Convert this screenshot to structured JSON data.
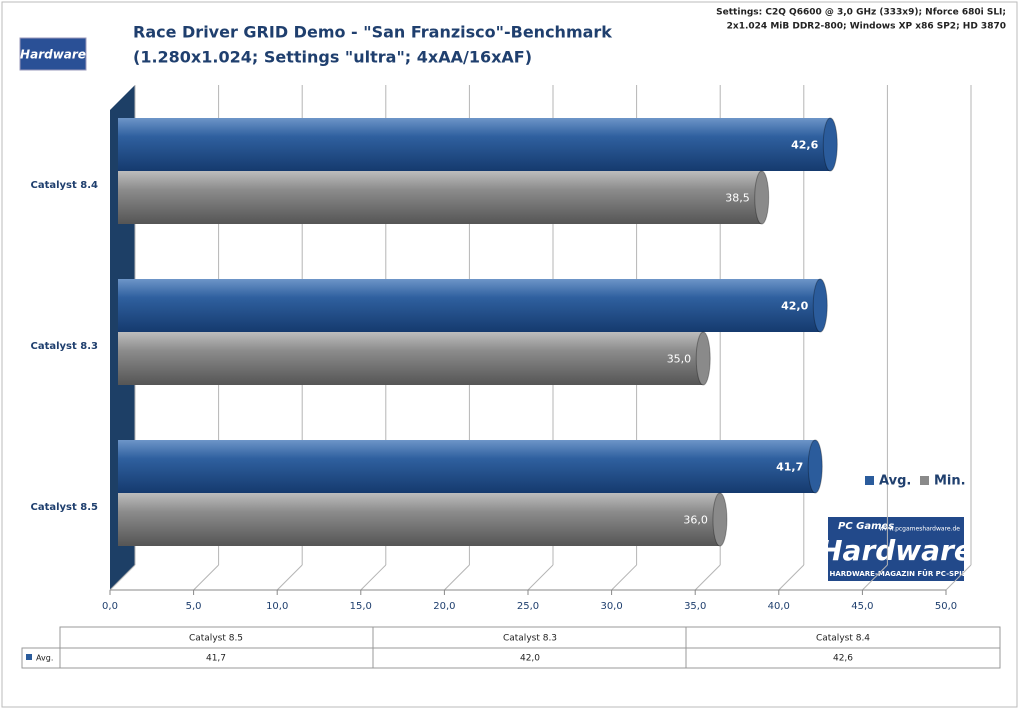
{
  "chart_data": {
    "type": "bar",
    "orientation": "horizontal",
    "title": [
      "Race Driver GRID Demo - \"San Franzisco\"-Benchmark",
      "(1.280x1.024; Settings \"ultra\"; 4xAA/16xAF)"
    ],
    "subtitle": [
      "Settings: C2Q Q6600 @ 3,0 GHz (333x9); Nforce 680i SLI;",
      "2x1.024 MiB DDR2-800; Windows XP x86 SP2; HD 3870"
    ],
    "categories": [
      "Catalyst 8.4",
      "Catalyst 8.3",
      "Catalyst 8.5"
    ],
    "series": [
      {
        "name": "Avg.",
        "color": "#2b5c9c",
        "values": [
          42.6,
          42.0,
          41.7
        ],
        "value_labels": [
          "42,6",
          "42,0",
          "41,7"
        ]
      },
      {
        "name": "Min.",
        "color": "#8a8a8a",
        "values": [
          38.5,
          35.0,
          36.0
        ],
        "value_labels": [
          "38,5",
          "35,0",
          "36,0"
        ]
      }
    ],
    "xlim": [
      0,
      50
    ],
    "xticks": [
      {
        "value": 0,
        "label": "0,0"
      },
      {
        "value": 5,
        "label": "5,0"
      },
      {
        "value": 10,
        "label": "10,0"
      },
      {
        "value": 15,
        "label": "15,0"
      },
      {
        "value": 20,
        "label": "20,0"
      },
      {
        "value": 25,
        "label": "25,0"
      },
      {
        "value": 30,
        "label": "30,0"
      },
      {
        "value": 35,
        "label": "35,0"
      },
      {
        "value": 40,
        "label": "40,0"
      },
      {
        "value": 45,
        "label": "45,0"
      },
      {
        "value": 50,
        "label": "50,0"
      }
    ],
    "grid": true,
    "legend": "right",
    "data_table": {
      "columns": [
        "Catalyst 8.5",
        "Catalyst 8.3",
        "Catalyst 8.4"
      ],
      "row_label": "Avg.",
      "cells": [
        "41,7",
        "42,0",
        "42,6"
      ]
    },
    "logo": {
      "brand": "PC Games",
      "name": "Hardware",
      "tagline": "DAS HARDWARE-MAGAZIN FÜR PC-SPIELER",
      "url": "www.pcgameshardware.de"
    }
  }
}
